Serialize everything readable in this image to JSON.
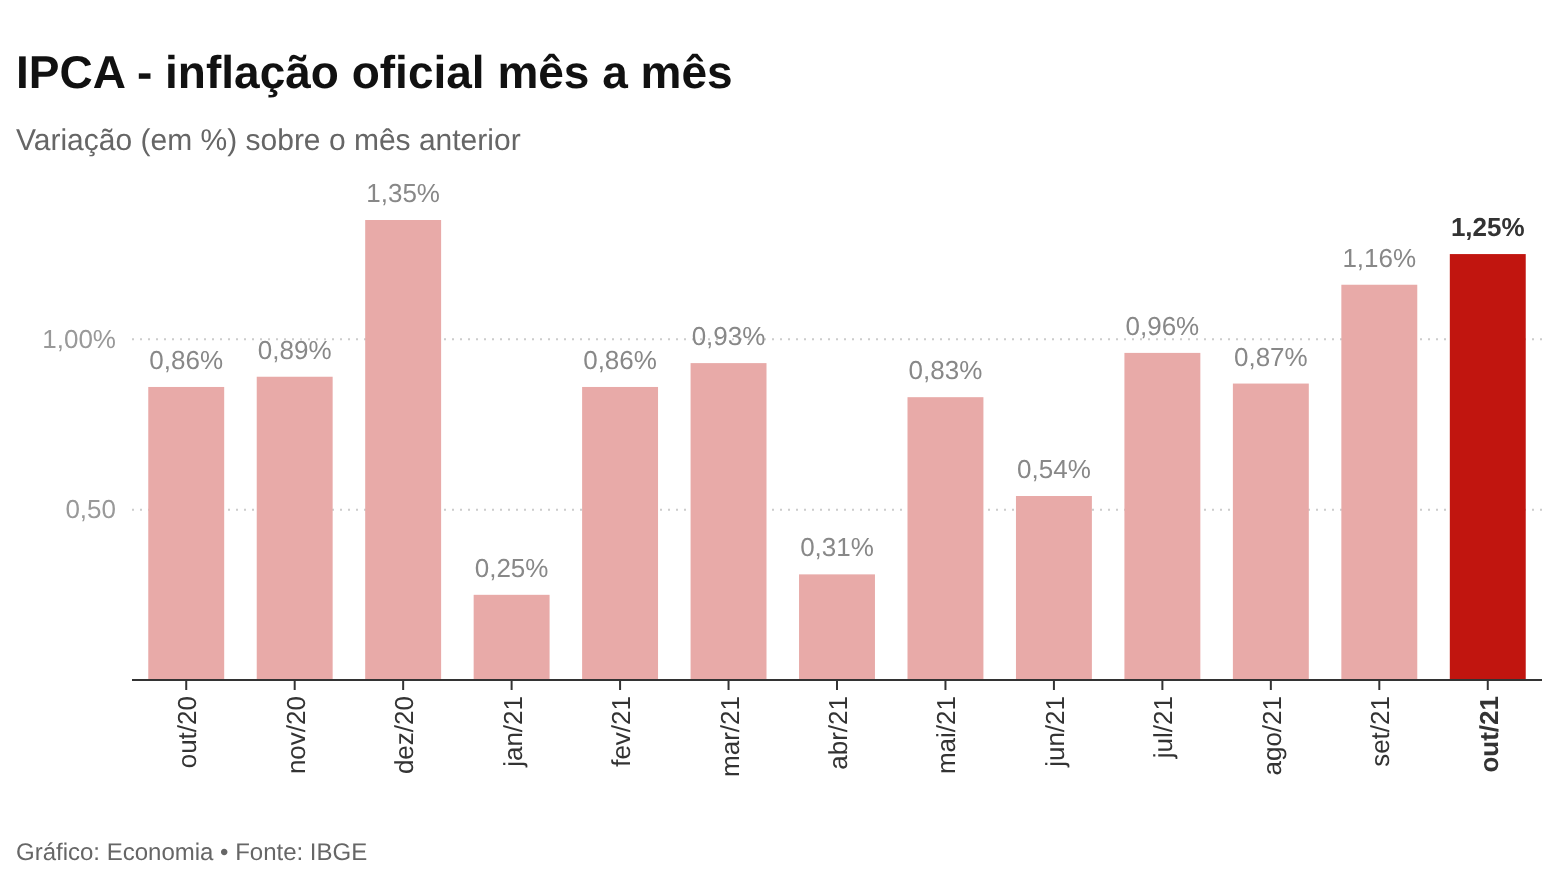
{
  "chart_data": {
    "type": "bar",
    "title": "IPCA - inflação oficial mês a mês",
    "subtitle": "Variação (em %) sobre o mês anterior",
    "categories": [
      "out/20",
      "nov/20",
      "dez/20",
      "jan/21",
      "fev/21",
      "mar/21",
      "abr/21",
      "mai/21",
      "jun/21",
      "jul/21",
      "ago/21",
      "set/21",
      "out/21"
    ],
    "values": [
      0.86,
      0.89,
      1.35,
      0.25,
      0.86,
      0.93,
      0.31,
      0.83,
      0.54,
      0.96,
      0.87,
      1.16,
      1.25
    ],
    "value_labels": [
      "0,86%",
      "0,89%",
      "1,35%",
      "0,25%",
      "0,86%",
      "0,93%",
      "0,31%",
      "0,83%",
      "0,54%",
      "0,96%",
      "0,87%",
      "1,16%",
      "1,25%"
    ],
    "colors": [
      "#e8aaa8",
      "#e8aaa8",
      "#e8aaa8",
      "#e8aaa8",
      "#e8aaa8",
      "#e8aaa8",
      "#e8aaa8",
      "#e8aaa8",
      "#e8aaa8",
      "#e8aaa8",
      "#e8aaa8",
      "#e8aaa8",
      "#c1150f"
    ],
    "yticks": [
      {
        "value": 0.5,
        "label": "0,50"
      },
      {
        "value": 1,
        "label": "1,00%"
      }
    ],
    "ylim": [
      0,
      1.35
    ],
    "grid": "y",
    "annotations": [
      "Gráfico: Economia • Fonte: IBGE"
    ]
  }
}
